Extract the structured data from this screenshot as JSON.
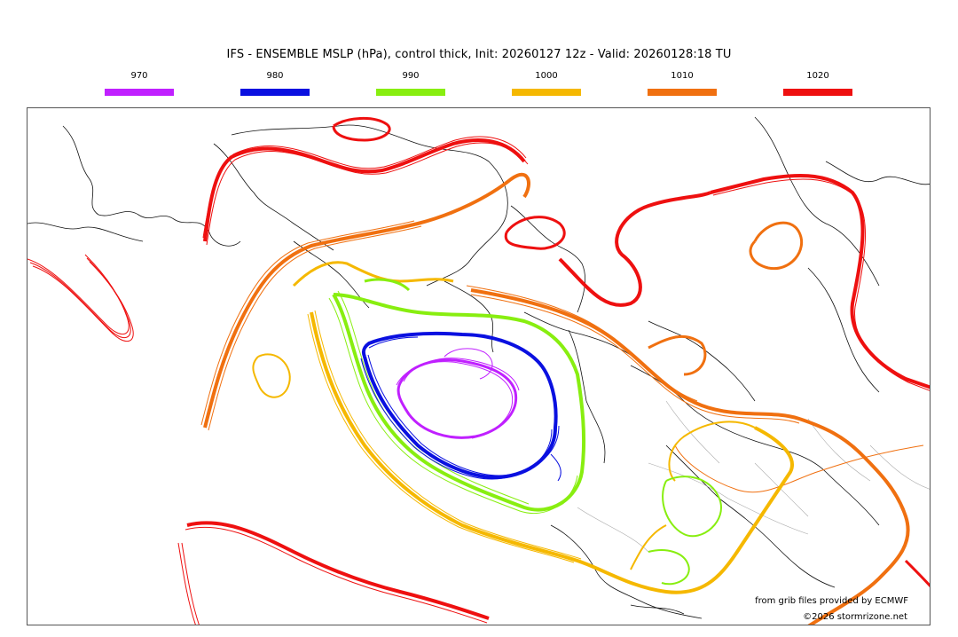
{
  "title": "IFS - ENSEMBLE MSLP (hPa), control thick, Init: 20260127 12z - Valid: 20260128:18 TU",
  "legend": [
    {
      "label": "970",
      "color": "#c020ff"
    },
    {
      "label": "980",
      "color": "#0a10e0"
    },
    {
      "label": "990",
      "color": "#88ee10"
    },
    {
      "label": "1000",
      "color": "#f5b800"
    },
    {
      "label": "1010",
      "color": "#f07010"
    },
    {
      "label": "1020",
      "color": "#ee1010"
    }
  ],
  "credits": {
    "source": "from grib files provided by ECMWF",
    "copyright": "©2026 stormrizone.net"
  }
}
